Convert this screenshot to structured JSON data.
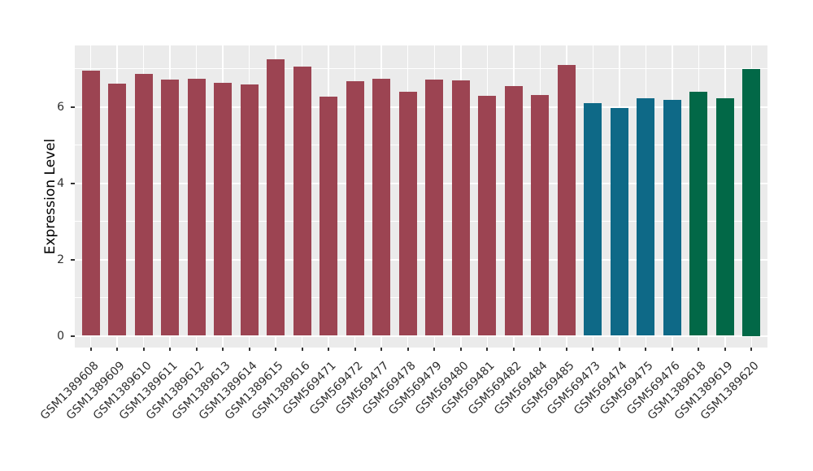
{
  "figure": {
    "background_color": "#ffffff",
    "panel_background_color": "#ebebeb",
    "grid_color": "#ffffff",
    "tick_color": "#333333",
    "tick_label_color": "#2e2e2e"
  },
  "chart_data": {
    "type": "bar",
    "title": "",
    "xlabel": "",
    "ylabel": "Expression Level",
    "ylim": [
      0,
      7.6
    ],
    "yticks": [
      0,
      2,
      4,
      6
    ],
    "yticks_minor": [
      1,
      3,
      5,
      7
    ],
    "grid": true,
    "legend_position": "none",
    "categories": [
      "GSM1389608",
      "GSM1389609",
      "GSM1389610",
      "GSM1389611",
      "GSM1389612",
      "GSM1389613",
      "GSM1389614",
      "GSM1389615",
      "GSM1389616",
      "GSM569471",
      "GSM569472",
      "GSM569477",
      "GSM569478",
      "GSM569479",
      "GSM569480",
      "GSM569481",
      "GSM569482",
      "GSM569484",
      "GSM569485",
      "GSM569473",
      "GSM569474",
      "GSM569475",
      "GSM569476",
      "GSM1389618",
      "GSM1389619",
      "GSM1389620"
    ],
    "values": [
      6.95,
      6.61,
      6.87,
      6.72,
      6.73,
      6.63,
      6.59,
      7.24,
      7.05,
      6.27,
      6.66,
      6.73,
      6.4,
      6.72,
      6.69,
      6.28,
      6.54,
      6.31,
      7.1,
      6.1,
      5.96,
      6.23,
      6.19,
      6.4,
      6.22,
      7.0
    ],
    "bar_colors": [
      "#9c4452",
      "#9c4452",
      "#9c4452",
      "#9c4452",
      "#9c4452",
      "#9c4452",
      "#9c4452",
      "#9c4452",
      "#9c4452",
      "#9c4452",
      "#9c4452",
      "#9c4452",
      "#9c4452",
      "#9c4452",
      "#9c4452",
      "#9c4452",
      "#9c4452",
      "#9c4452",
      "#9c4452",
      "#0e6987",
      "#0e6987",
      "#0e6987",
      "#0e6987",
      "#026847",
      "#026847",
      "#026847"
    ],
    "palette": {
      "group1_color": "#9c4452",
      "group2_color": "#0e6987",
      "group3_color": "#026847"
    }
  }
}
